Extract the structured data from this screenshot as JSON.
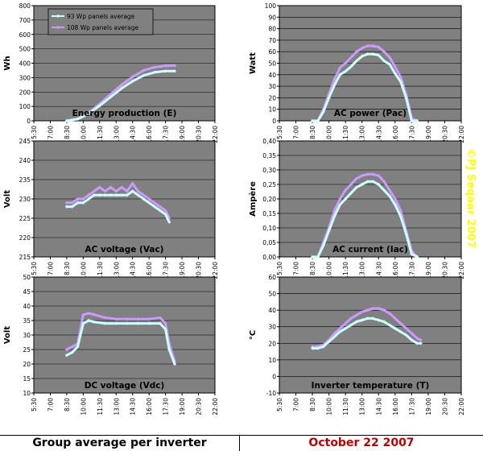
{
  "footer": {
    "left": "Group average per inverter",
    "right": "October 22 2007"
  },
  "watermark": "©PJ Seqaar 2007",
  "colors": {
    "plot_bg": "#808080",
    "series1": "#ccffff",
    "series2": "#cc99ff",
    "watermark": "#ffff00",
    "date": "#c00000"
  },
  "chart_data": [
    {
      "type": "line",
      "title": "Energy production (E)",
      "ylabel": "Wh",
      "ylim": [
        0,
        800
      ],
      "yticks": [
        "0",
        "100",
        "200",
        "300",
        "400",
        "500",
        "600",
        "700",
        "800"
      ],
      "xticks": [
        "5:30",
        "7:00",
        "8:30",
        "10:00",
        "11:30",
        "13:00",
        "14:30",
        "16:00",
        "17:30",
        "19:00",
        "20:30",
        "22:00"
      ],
      "legend": [
        "93 Wp panels average",
        "108 Wp panels average"
      ],
      "series": [
        {
          "name": "93 Wp panels average",
          "x": [
            "8:30",
            "9:30",
            "10:30",
            "11:30",
            "12:30",
            "13:30",
            "14:30",
            "15:30",
            "16:30",
            "17:30",
            "18:20"
          ],
          "values": [
            0,
            12,
            50,
            105,
            165,
            225,
            275,
            315,
            337,
            345,
            345
          ]
        },
        {
          "name": "108 Wp panels average",
          "x": [
            "8:30",
            "9:30",
            "10:30",
            "11:30",
            "12:30",
            "13:30",
            "14:30",
            "15:30",
            "16:30",
            "17:30",
            "18:20"
          ],
          "values": [
            0,
            14,
            57,
            118,
            185,
            250,
            305,
            350,
            372,
            382,
            383
          ]
        }
      ]
    },
    {
      "type": "line",
      "title": "AC power (Pac)",
      "ylabel": "Watt",
      "ylim": [
        0,
        100
      ],
      "yticks": [
        "0",
        "10",
        "20",
        "30",
        "40",
        "50",
        "60",
        "70",
        "80",
        "90",
        "100"
      ],
      "xticks": [
        "5:30",
        "7:00",
        "8:30",
        "10:00",
        "11:30",
        "13:00",
        "14:30",
        "16:00",
        "17:30",
        "19:00",
        "20:30",
        "22:00"
      ],
      "series": [
        {
          "name": "93 Wp panels average",
          "x": [
            "8:30",
            "9:00",
            "9:30",
            "10:00",
            "10:30",
            "11:00",
            "11:30",
            "12:00",
            "12:30",
            "13:00",
            "13:30",
            "14:00",
            "14:30",
            "15:00",
            "15:30",
            "16:00",
            "16:30",
            "17:00",
            "17:30",
            "18:00"
          ],
          "values": [
            0,
            0,
            8,
            20,
            31,
            40,
            43,
            47,
            52,
            56,
            58,
            58,
            57,
            52,
            49,
            41,
            34,
            20,
            0,
            0
          ]
        },
        {
          "name": "108 Wp panels average",
          "x": [
            "8:30",
            "9:00",
            "9:30",
            "10:00",
            "10:30",
            "11:00",
            "11:30",
            "12:00",
            "12:30",
            "13:00",
            "13:30",
            "14:00",
            "14:30",
            "15:00",
            "15:30",
            "16:00",
            "16:30",
            "17:00",
            "17:30",
            "18:00"
          ],
          "values": [
            0,
            0,
            10,
            23,
            36,
            46,
            50,
            55,
            60,
            63,
            65,
            65,
            64,
            60,
            55,
            47,
            38,
            23,
            2,
            0
          ]
        }
      ]
    },
    {
      "type": "line",
      "title": "AC voltage (Vac)",
      "ylabel": "Volt",
      "ylim": [
        215,
        245
      ],
      "yticks": [
        "215",
        "220",
        "225",
        "230",
        "235",
        "240",
        "245"
      ],
      "xticks": [
        "5:30",
        "7:00",
        "8:30",
        "10:00",
        "11:30",
        "13:00",
        "14:30",
        "16:00",
        "17:30",
        "19:00",
        "20:30",
        "22:00"
      ],
      "series": [
        {
          "name": "93 Wp panels average",
          "x": [
            "8:30",
            "9:00",
            "9:30",
            "10:00",
            "10:30",
            "11:00",
            "11:30",
            "12:00",
            "12:30",
            "13:00",
            "13:30",
            "14:00",
            "14:30",
            "15:00",
            "15:30",
            "16:00",
            "16:30",
            "17:00",
            "17:30",
            "17:50"
          ],
          "values": [
            228,
            228,
            229,
            229,
            230,
            231,
            231,
            231,
            231,
            231,
            231,
            231,
            232,
            231,
            230,
            229,
            228,
            227,
            226,
            224
          ]
        },
        {
          "name": "108 Wp panels average",
          "x": [
            "8:30",
            "9:00",
            "9:30",
            "10:00",
            "10:30",
            "11:00",
            "11:30",
            "12:00",
            "12:30",
            "13:00",
            "13:30",
            "14:00",
            "14:30",
            "15:00",
            "15:30",
            "16:00",
            "16:30",
            "17:00",
            "17:30",
            "17:50"
          ],
          "values": [
            229,
            229,
            230,
            230,
            231,
            232,
            233,
            232,
            233,
            232,
            233,
            232,
            234,
            232,
            231,
            230,
            229,
            228,
            227,
            225
          ]
        }
      ]
    },
    {
      "type": "line",
      "title": "AC current (Iac)",
      "ylabel": "Ampère",
      "ylim": [
        0,
        0.4
      ],
      "yticks": [
        "0,00",
        "0,05",
        "0,10",
        "0,15",
        "0,20",
        "0,25",
        "0,30",
        "0,35",
        "0,40"
      ],
      "xticks": [
        "5:30",
        "7:00",
        "8:30",
        "10:00",
        "11:30",
        "13:00",
        "14:30",
        "16:00",
        "17:30",
        "19:00",
        "20:30",
        "22:00"
      ],
      "series": [
        {
          "name": "93 Wp panels average",
          "x": [
            "8:30",
            "9:00",
            "9:30",
            "10:00",
            "10:30",
            "11:00",
            "11:30",
            "12:00",
            "12:30",
            "13:00",
            "13:30",
            "14:00",
            "14:30",
            "15:00",
            "15:30",
            "16:00",
            "16:30",
            "17:00",
            "17:30",
            "18:00"
          ],
          "values": [
            0,
            0,
            0.04,
            0.09,
            0.14,
            0.18,
            0.2,
            0.22,
            0.24,
            0.25,
            0.26,
            0.26,
            0.25,
            0.23,
            0.21,
            0.18,
            0.14,
            0.08,
            0.01,
            0
          ]
        },
        {
          "name": "108 Wp panels average",
          "x": [
            "8:30",
            "9:00",
            "9:30",
            "10:00",
            "10:30",
            "11:00",
            "11:30",
            "12:00",
            "12:30",
            "13:00",
            "13:30",
            "14:00",
            "14:30",
            "15:00",
            "15:30",
            "16:00",
            "16:30",
            "17:00",
            "17:30",
            "18:00"
          ],
          "values": [
            0,
            0,
            0.05,
            0.1,
            0.16,
            0.2,
            0.23,
            0.25,
            0.27,
            0.28,
            0.285,
            0.285,
            0.28,
            0.26,
            0.23,
            0.2,
            0.16,
            0.09,
            0.02,
            0
          ]
        }
      ]
    },
    {
      "type": "line",
      "title": "DC voltage (Vdc)",
      "ylabel": "Volt",
      "ylim": [
        10,
        50
      ],
      "yticks": [
        "10",
        "15",
        "20",
        "25",
        "30",
        "35",
        "40",
        "45",
        "50"
      ],
      "xticks": [
        "5:30",
        "7:00",
        "8:30",
        "10:00",
        "11:30",
        "13:00",
        "14:30",
        "16:00",
        "17:30",
        "19:00",
        "20:30",
        "22:00"
      ],
      "series": [
        {
          "name": "93 Wp panels average",
          "x": [
            "8:30",
            "9:00",
            "9:30",
            "10:00",
            "10:30",
            "11:00",
            "12:00",
            "13:00",
            "14:00",
            "15:00",
            "16:00",
            "17:00",
            "17:30",
            "17:50",
            "18:20"
          ],
          "values": [
            23,
            24,
            26,
            34,
            35,
            34.5,
            34,
            34,
            34,
            34,
            34,
            34,
            32,
            25,
            20
          ]
        },
        {
          "name": "108 Wp panels average",
          "x": [
            "8:30",
            "9:00",
            "9:30",
            "10:00",
            "10:30",
            "11:00",
            "12:00",
            "13:00",
            "14:00",
            "15:00",
            "16:00",
            "17:00",
            "17:30",
            "17:50",
            "18:20"
          ],
          "values": [
            25,
            26,
            27,
            37,
            37.5,
            37,
            36,
            35.5,
            35.5,
            35.5,
            35.5,
            36,
            34,
            27,
            21
          ]
        }
      ]
    },
    {
      "type": "line",
      "title": "Inverter temperature (T)",
      "ylabel": "°C",
      "ylim": [
        -10,
        60
      ],
      "yticks": [
        "-10",
        "0",
        "10",
        "20",
        "30",
        "40",
        "50",
        "60"
      ],
      "xticks": [
        "5:30",
        "7:00",
        "8:30",
        "10:00",
        "11:30",
        "13:00",
        "14:30",
        "16:00",
        "17:30",
        "19:00",
        "20:30",
        "22:00"
      ],
      "series": [
        {
          "name": "93 Wp panels average",
          "x": [
            "8:30",
            "9:00",
            "9:30",
            "10:00",
            "10:30",
            "11:00",
            "11:30",
            "12:00",
            "12:30",
            "13:00",
            "13:30",
            "14:00",
            "14:30",
            "15:00",
            "15:30",
            "16:00",
            "16:30",
            "17:00",
            "17:30",
            "18:00",
            "18:20"
          ],
          "values": [
            17,
            17,
            18,
            21,
            24,
            27,
            29,
            31,
            33,
            34,
            35,
            35,
            34,
            33,
            31,
            29,
            27,
            25,
            22,
            20,
            20
          ]
        },
        {
          "name": "108 Wp panels average",
          "x": [
            "8:30",
            "9:00",
            "9:30",
            "10:00",
            "10:30",
            "11:00",
            "11:30",
            "12:00",
            "12:30",
            "13:00",
            "13:30",
            "14:00",
            "14:30",
            "15:00",
            "15:30",
            "16:00",
            "16:30",
            "17:00",
            "17:30",
            "18:00",
            "18:20"
          ],
          "values": [
            18,
            18,
            19,
            22,
            26,
            29,
            32,
            35,
            37,
            39,
            40,
            41,
            41,
            40,
            38,
            35,
            32,
            29,
            26,
            23,
            22
          ]
        }
      ]
    }
  ]
}
